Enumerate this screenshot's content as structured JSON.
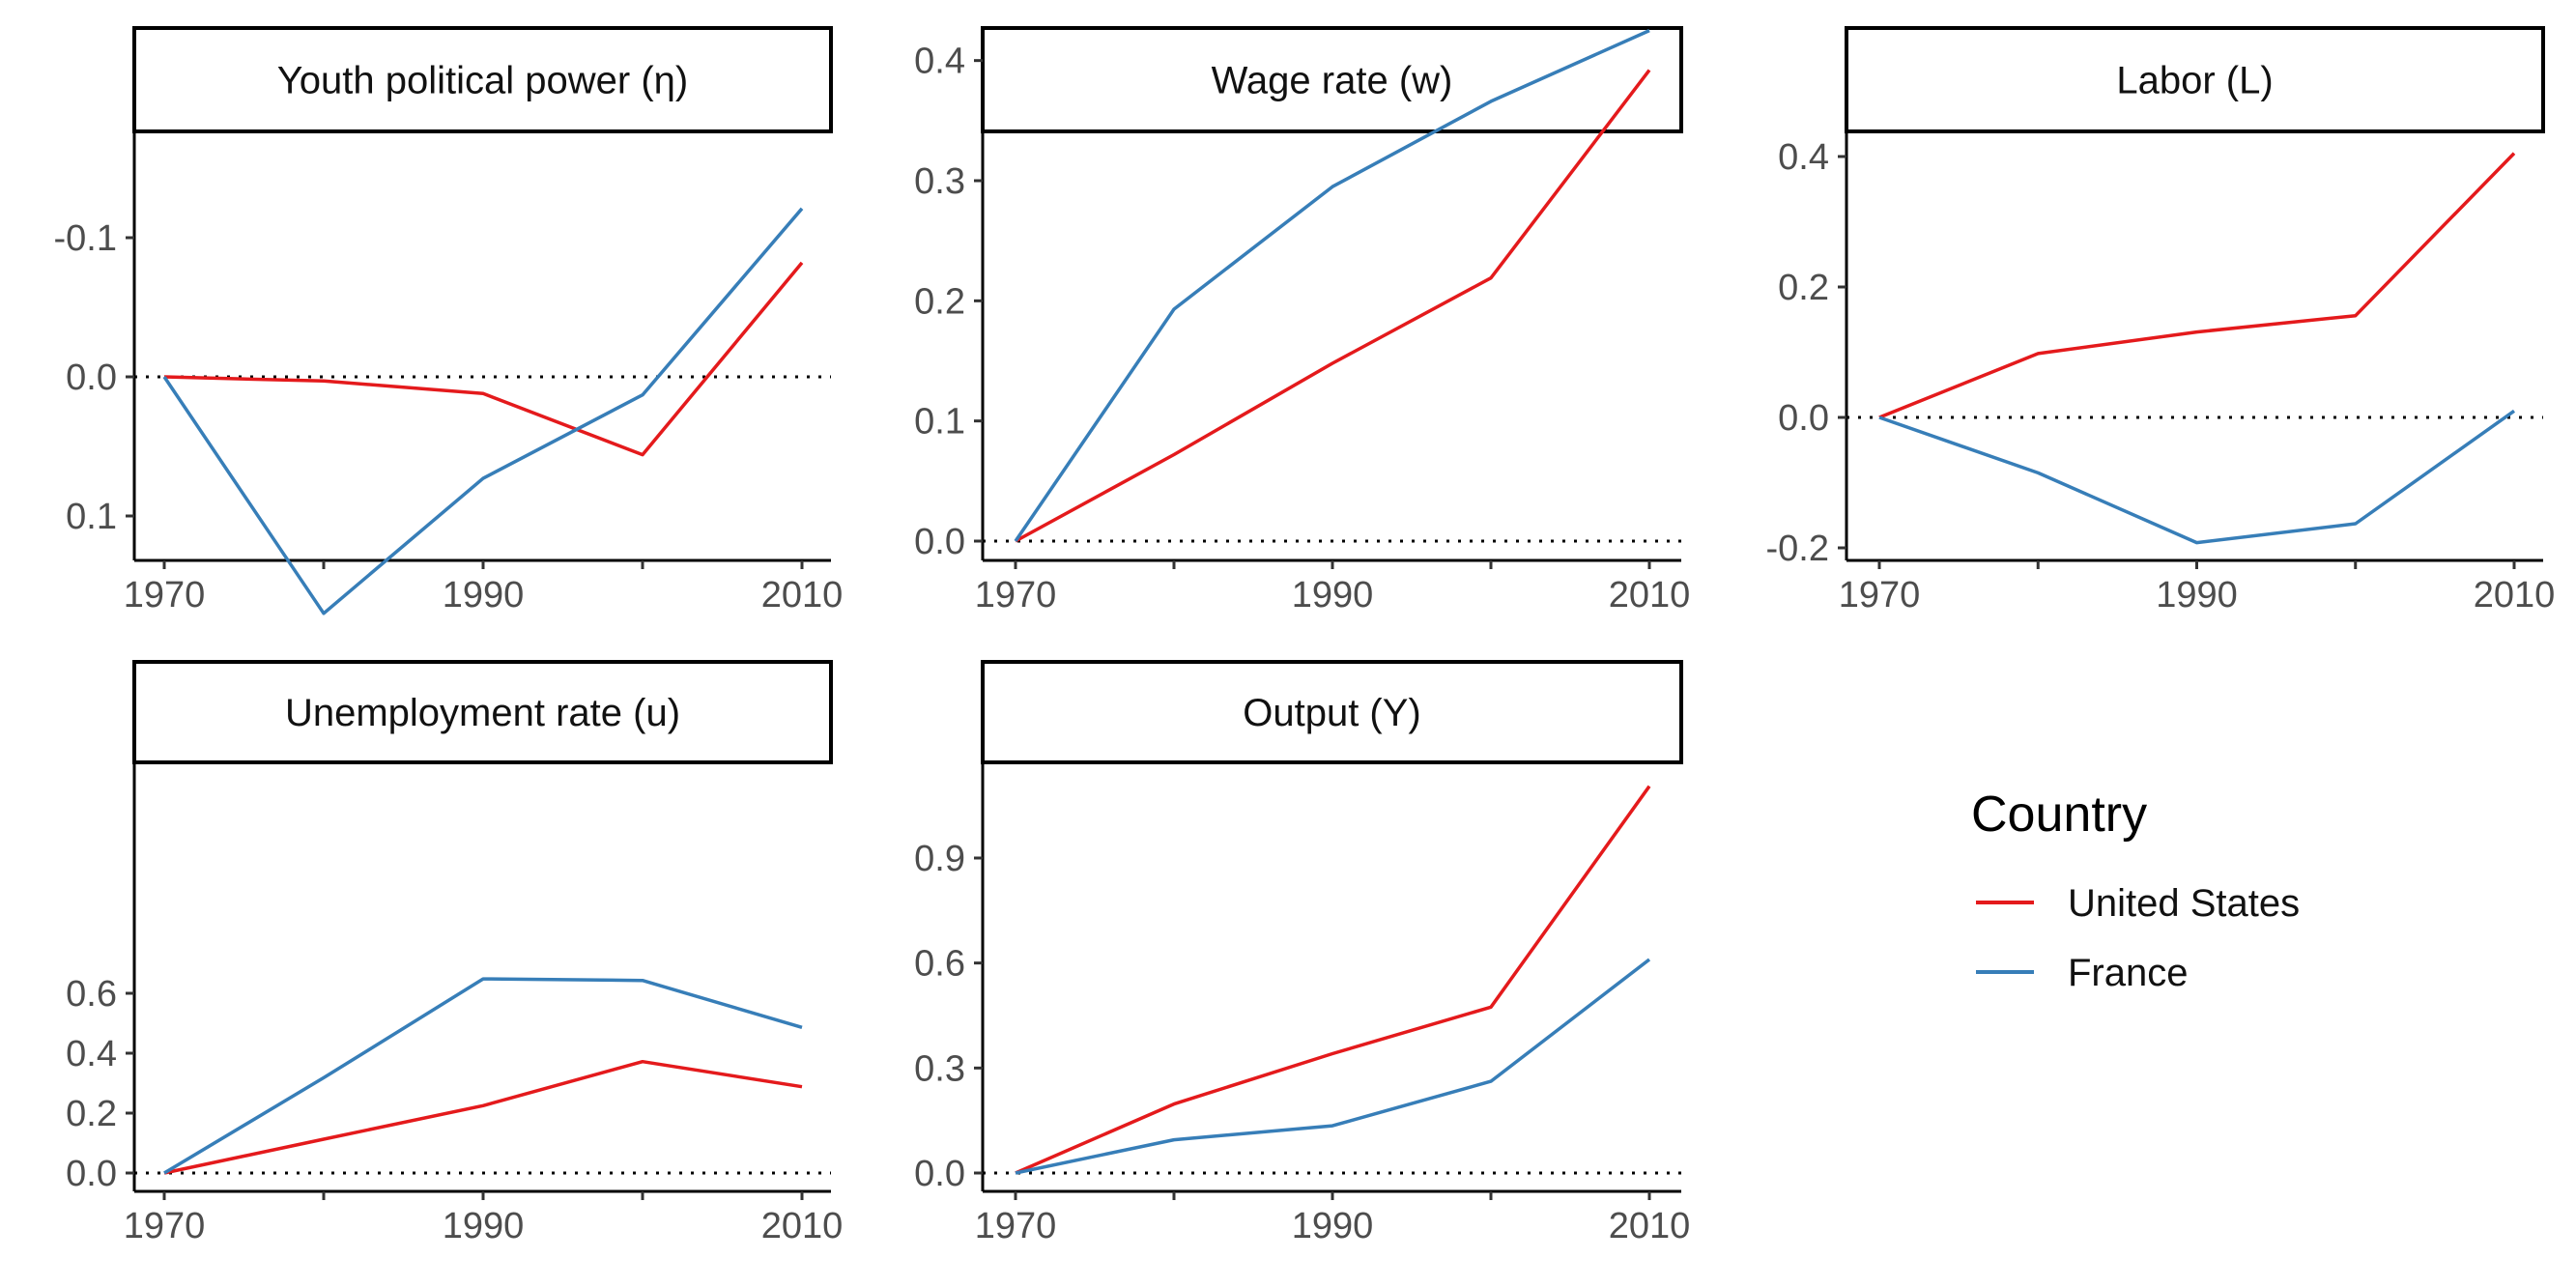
{
  "chart_data": [
    {
      "type": "line",
      "title": "Youth political power (η)",
      "x": [
        1970,
        1980,
        1990,
        2000,
        2010
      ],
      "x_ticks": [
        "1970",
        "1990",
        "2010"
      ],
      "xlim": [
        1970,
        2010
      ],
      "ylim": [
        -0.13,
        0.18
      ],
      "y_ticks": [
        "-0.1",
        "0.0",
        "0.1"
      ],
      "reference_line": 0,
      "series": [
        {
          "name": "United States",
          "values": [
            0.0,
            0.003,
            0.012,
            0.056,
            -0.082
          ]
        },
        {
          "name": "France",
          "values": [
            0.0,
            0.17,
            0.073,
            0.013,
            -0.121
          ]
        }
      ]
    },
    {
      "type": "line",
      "title": "Wage rate (w)",
      "x": [
        1970,
        1980,
        1990,
        2000,
        2010
      ],
      "x_ticks": [
        "1970",
        "1990",
        "2010"
      ],
      "xlim": [
        1970,
        2010
      ],
      "ylim": [
        -0.02,
        0.44
      ],
      "y_ticks": [
        "0.0",
        "0.1",
        "0.2",
        "0.3",
        "0.4"
      ],
      "reference_line": 0,
      "series": [
        {
          "name": "United States",
          "values": [
            0.0,
            0.072,
            0.148,
            0.219,
            0.392
          ]
        },
        {
          "name": "France",
          "values": [
            0.0,
            0.193,
            0.295,
            0.366,
            0.425
          ]
        }
      ]
    },
    {
      "type": "line",
      "title": "Labor (L)",
      "x": [
        1970,
        1980,
        1990,
        2000,
        2010
      ],
      "x_ticks": [
        "1970",
        "1990",
        "2010"
      ],
      "xlim": [
        1970,
        2010
      ],
      "ylim": [
        -0.22,
        0.43
      ],
      "y_ticks": [
        "-0.2",
        "0.0",
        "0.2",
        "0.4"
      ],
      "reference_line": 0,
      "series": [
        {
          "name": "United States",
          "values": [
            0.0,
            0.098,
            0.131,
            0.156,
            0.405
          ]
        },
        {
          "name": "France",
          "values": [
            0.0,
            -0.085,
            -0.192,
            -0.163,
            0.01
          ]
        }
      ]
    },
    {
      "type": "line",
      "title": "Unemployment rate (u)",
      "x": [
        1970,
        1980,
        1990,
        2000,
        2010
      ],
      "x_ticks": [
        "1970",
        "1990",
        "2010"
      ],
      "xlim": [
        1970,
        2010
      ],
      "ylim": [
        -0.03,
        0.68
      ],
      "y_ticks": [
        "0.0",
        "0.2",
        "0.4",
        "0.6"
      ],
      "reference_line": 0,
      "series": [
        {
          "name": "United States",
          "values": [
            0.0,
            0.113,
            0.225,
            0.372,
            0.288
          ]
        },
        {
          "name": "France",
          "values": [
            0.0,
            0.318,
            0.648,
            0.643,
            0.486
          ]
        }
      ]
    },
    {
      "type": "line",
      "title": "Output (Y)",
      "x": [
        1970,
        1980,
        1990,
        2000,
        2010
      ],
      "x_ticks": [
        "1970",
        "1990",
        "2010"
      ],
      "xlim": [
        1970,
        2010
      ],
      "ylim": [
        -0.05,
        1.18
      ],
      "y_ticks": [
        "0.0",
        "0.3",
        "0.6",
        "0.9"
      ],
      "reference_line": 0,
      "series": [
        {
          "name": "United States",
          "values": [
            0.0,
            0.197,
            0.341,
            0.474,
            1.105
          ]
        },
        {
          "name": "France",
          "values": [
            0.0,
            0.095,
            0.135,
            0.262,
            0.61
          ]
        }
      ]
    }
  ],
  "legend": {
    "title": "Country",
    "items": [
      {
        "label": "United States",
        "color": "#e41a1c"
      },
      {
        "label": "France",
        "color": "#377eb8"
      }
    ]
  },
  "colors": {
    "United States": "#e41a1c",
    "France": "#377eb8",
    "axis": "#000000",
    "tick_text": "#4d4d4d"
  }
}
